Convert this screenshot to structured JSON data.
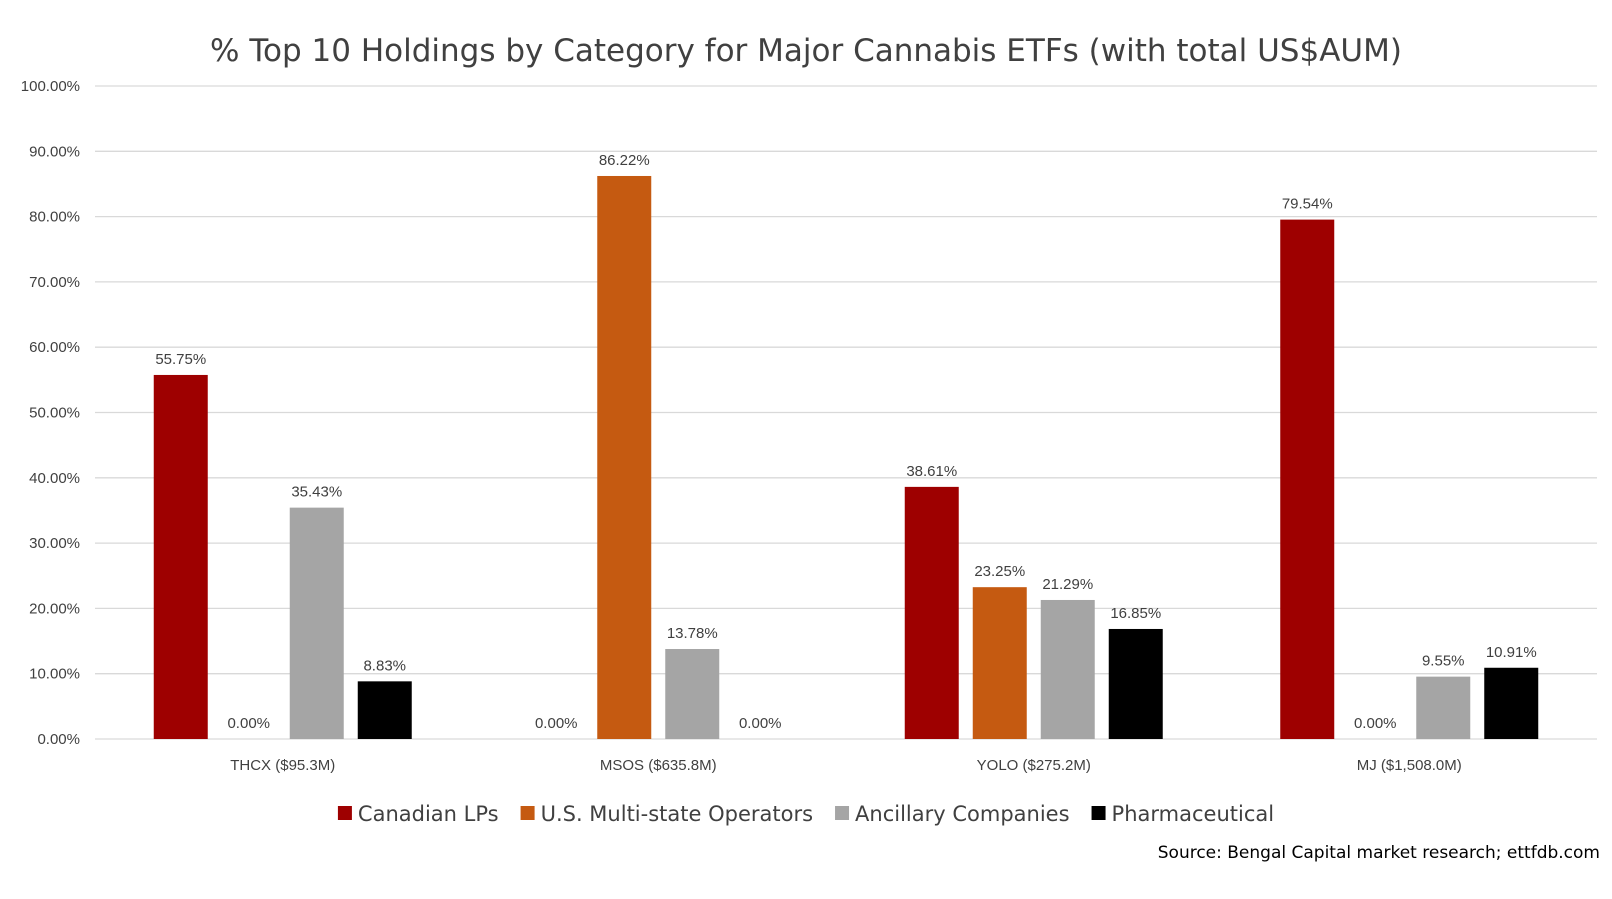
{
  "chart_data": {
    "type": "bar",
    "title": "% Top 10 Holdings by Category for Major Cannabis ETFs (with total US$AUM)",
    "categories": [
      "THCX ($95.3M)",
      "MSOS ($635.8M)",
      "YOLO ($275.2M)",
      "MJ ($1,508.0M)"
    ],
    "series": [
      {
        "name": "Canadian LPs",
        "color": "#9e0000",
        "values": [
          55.75,
          0.0,
          38.61,
          79.54
        ],
        "labels": [
          "55.75%",
          "0.00%",
          "38.61%",
          "79.54%"
        ]
      },
      {
        "name": "U.S. Multi-state Operators",
        "color": "#c55a11",
        "values": [
          0.0,
          86.22,
          23.25,
          0.0
        ],
        "labels": [
          "0.00%",
          "86.22%",
          "23.25%",
          "0.00%"
        ]
      },
      {
        "name": "Ancillary Companies",
        "color": "#a5a5a5",
        "values": [
          35.43,
          13.78,
          21.29,
          9.55
        ],
        "labels": [
          "35.43%",
          "13.78%",
          "21.29%",
          "9.55%"
        ]
      },
      {
        "name": "Pharmaceutical",
        "color": "#000000",
        "values": [
          8.83,
          0.0,
          16.85,
          10.91
        ],
        "labels": [
          "8.83%",
          "0.00%",
          "16.85%",
          "10.91%"
        ]
      }
    ],
    "ylim": [
      0,
      100
    ],
    "yticks": [
      "0.00%",
      "10.00%",
      "20.00%",
      "30.00%",
      "40.00%",
      "50.00%",
      "60.00%",
      "70.00%",
      "80.00%",
      "90.00%",
      "100.00%"
    ],
    "grid": true,
    "legend_position": "bottom",
    "source": "Source: Bengal Capital market research; ettfdb.com"
  }
}
